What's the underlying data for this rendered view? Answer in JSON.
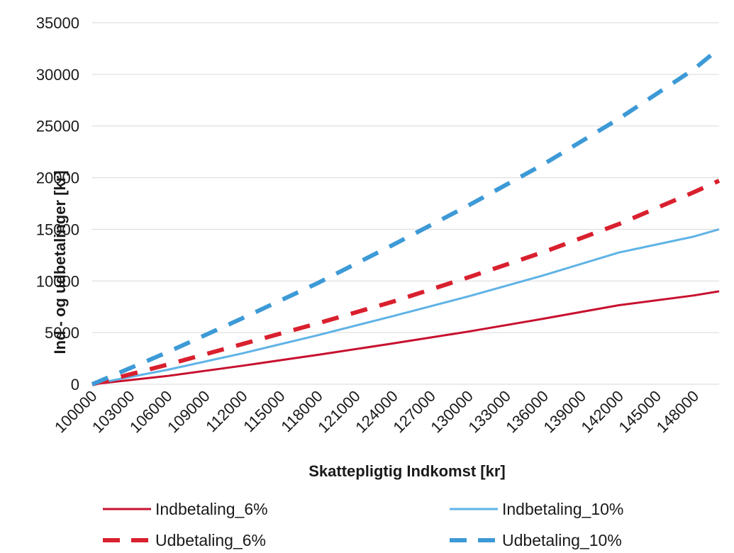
{
  "chart_data": {
    "type": "line",
    "xlabel": "Skattepligtig Indkomst [kr]",
    "ylabel": "Ind - og udbetalinger [kr]",
    "ylim": [
      0,
      35000
    ],
    "yticks": [
      0,
      5000,
      10000,
      15000,
      20000,
      25000,
      30000,
      35000
    ],
    "x_range": [
      100000,
      150000
    ],
    "x_tick_labels": [
      "100000",
      "103000",
      "106000",
      "109000",
      "112000",
      "115000",
      "118000",
      "121000",
      "124000",
      "127000",
      "130000",
      "133000",
      "136000",
      "139000",
      "142000",
      "145000",
      "148000"
    ],
    "grid": "horizontal",
    "legend_position": "bottom",
    "series": [
      {
        "name": "Indbetaling_6%",
        "color": "#c8102e",
        "style": "solid",
        "x": [
          100000,
          106000,
          112000,
          118000,
          124000,
          130000,
          136000,
          142000,
          148000,
          150000
        ],
        "y": [
          0,
          800,
          1800,
          2850,
          3950,
          5100,
          6350,
          7650,
          8600,
          9000
        ]
      },
      {
        "name": "Indbetaling_10%",
        "color": "#5fb3e6",
        "style": "solid",
        "x": [
          100000,
          106000,
          112000,
          118000,
          124000,
          130000,
          136000,
          142000,
          148000,
          150000
        ],
        "y": [
          0,
          1400,
          3000,
          4750,
          6600,
          8500,
          10550,
          12750,
          14300,
          15000
        ]
      },
      {
        "name": "Udbetaling_6%",
        "color": "#d9202e",
        "style": "dashed",
        "x": [
          100000,
          106000,
          112000,
          118000,
          124000,
          130000,
          136000,
          142000,
          148000,
          150000
        ],
        "y": [
          0,
          1900,
          3900,
          5900,
          8000,
          10350,
          12800,
          15500,
          18600,
          19700
        ]
      },
      {
        "name": "Udbetaling_10%",
        "color": "#3d9ad6",
        "style": "dashed",
        "x": [
          100000,
          106000,
          112000,
          118000,
          124000,
          130000,
          136000,
          142000,
          148000,
          150000
        ],
        "y": [
          0,
          3100,
          6400,
          9800,
          13500,
          17300,
          21300,
          25700,
          30500,
          32500
        ]
      }
    ]
  }
}
